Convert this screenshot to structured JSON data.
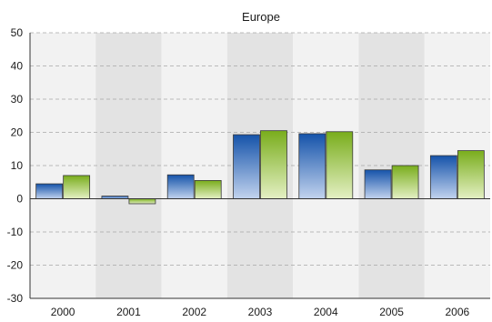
{
  "chart_data": {
    "type": "bar",
    "title": "Europe",
    "xlabel": "",
    "ylabel": "",
    "categories": [
      "2000",
      "2001",
      "2002",
      "2003",
      "2004",
      "2005",
      "2006"
    ],
    "series": [
      {
        "values": [
          4.5,
          0.8,
          7.2,
          19.3,
          19.6,
          8.7,
          13.0
        ],
        "color": "#1f5fb0"
      },
      {
        "values": [
          7.0,
          -1.5,
          5.5,
          20.5,
          20.2,
          10.0,
          14.5
        ],
        "color": "#8ab832"
      }
    ],
    "ylim": [
      -30,
      50
    ],
    "yticks": [
      -30,
      -20,
      -10,
      0,
      10,
      20,
      30,
      40,
      50
    ],
    "grid": true,
    "band_colors": [
      "#f2f2f2",
      "#e3e3e3"
    ]
  }
}
